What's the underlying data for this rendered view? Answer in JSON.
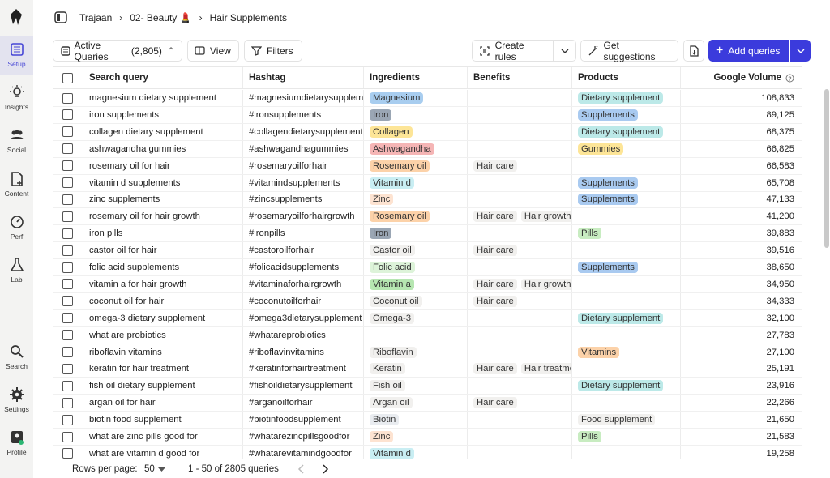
{
  "sidebar": {
    "items": [
      "Setup",
      "Insights",
      "Social",
      "Content",
      "Perf",
      "Lab",
      "Search",
      "Settings",
      "Profile"
    ]
  },
  "breadcrumb": [
    "Trajaan",
    "02- Beauty 💄",
    "Hair Supplements"
  ],
  "toolbar": {
    "active_queries": "Active Queries",
    "count": "(2,805)",
    "view": "View",
    "filters": "Filters",
    "create_rules": "Create rules",
    "get_suggestions": "Get suggestions",
    "add_queries": "Add queries"
  },
  "table": {
    "columns": [
      "Search query",
      "Hashtag",
      "Ingredients",
      "Benefits",
      "Products",
      "Google Volume"
    ],
    "rows": [
      {
        "query": "magnesium dietary supplement",
        "hashtag": "#magnesiumdietarysupplement",
        "ingredients": [
          {
            "text": "Magnesium",
            "color": "#a8cdef"
          }
        ],
        "benefits": [],
        "products": [
          {
            "text": "Dietary supplement",
            "color": "#bce9e8"
          }
        ],
        "volume": "108,833"
      },
      {
        "query": "iron supplements",
        "hashtag": "#ironsupplements",
        "ingredients": [
          {
            "text": "Iron",
            "color": "#9aa6b4"
          }
        ],
        "benefits": [],
        "products": [
          {
            "text": "Supplements",
            "color": "#a9caf0"
          }
        ],
        "volume": "89,125"
      },
      {
        "query": "collagen dietary supplement",
        "hashtag": "#collagendietarysupplement",
        "ingredients": [
          {
            "text": "Collagen",
            "color": "#fde597"
          }
        ],
        "benefits": [],
        "products": [
          {
            "text": "Dietary supplement",
            "color": "#bce9e8"
          }
        ],
        "volume": "68,375"
      },
      {
        "query": "ashwagandha gummies",
        "hashtag": "#ashwagandhagummies",
        "ingredients": [
          {
            "text": "Ashwagandha",
            "color": "#f5b5b5"
          }
        ],
        "benefits": [],
        "products": [
          {
            "text": "Gummies",
            "color": "#fde597"
          }
        ],
        "volume": "66,825"
      },
      {
        "query": "rosemary oil for hair",
        "hashtag": "#rosemaryoilforhair",
        "ingredients": [
          {
            "text": "Rosemary oil",
            "color": "#fcd2a9"
          }
        ],
        "benefits": [
          {
            "text": "Hair care",
            "color": "#f1f0ee"
          }
        ],
        "products": [],
        "volume": "66,583"
      },
      {
        "query": "vitamin d supplements",
        "hashtag": "#vitamindsupplements",
        "ingredients": [
          {
            "text": "Vitamin d",
            "color": "#c9eef3"
          }
        ],
        "benefits": [],
        "products": [
          {
            "text": "Supplements",
            "color": "#a9caf0"
          }
        ],
        "volume": "65,708"
      },
      {
        "query": "zinc supplements",
        "hashtag": "#zincsupplements",
        "ingredients": [
          {
            "text": "Zinc",
            "color": "#fde3d1"
          }
        ],
        "benefits": [],
        "products": [
          {
            "text": "Supplements",
            "color": "#a9caf0"
          }
        ],
        "volume": "47,133"
      },
      {
        "query": "rosemary oil for hair growth",
        "hashtag": "#rosemaryoilforhairgrowth",
        "ingredients": [
          {
            "text": "Rosemary oil",
            "color": "#fcd2a9"
          }
        ],
        "benefits": [
          {
            "text": "Hair care",
            "color": "#f1f0ee"
          },
          {
            "text": "Hair growth",
            "color": "#f1f0ee"
          }
        ],
        "products": [],
        "volume": "41,200"
      },
      {
        "query": "iron pills",
        "hashtag": "#ironpills",
        "ingredients": [
          {
            "text": "Iron",
            "color": "#9aa6b4"
          }
        ],
        "benefits": [],
        "products": [
          {
            "text": "Pills",
            "color": "#c8ecc1"
          }
        ],
        "volume": "39,883"
      },
      {
        "query": "castor oil for hair",
        "hashtag": "#castoroilforhair",
        "ingredients": [
          {
            "text": "Castor oil",
            "color": "#f1f0ee"
          }
        ],
        "benefits": [
          {
            "text": "Hair care",
            "color": "#f1f0ee"
          }
        ],
        "products": [],
        "volume": "39,516"
      },
      {
        "query": "folic acid supplements",
        "hashtag": "#folicacidsupplements",
        "ingredients": [
          {
            "text": "Folic acid",
            "color": "#ddf3d9"
          }
        ],
        "benefits": [],
        "products": [
          {
            "text": "Supplements",
            "color": "#a9caf0"
          }
        ],
        "volume": "38,650"
      },
      {
        "query": "vitamin a for hair growth",
        "hashtag": "#vitaminaforhairgrowth",
        "ingredients": [
          {
            "text": "Vitamin a",
            "color": "#b6e6b1"
          }
        ],
        "benefits": [
          {
            "text": "Hair care",
            "color": "#f1f0ee"
          },
          {
            "text": "Hair growth",
            "color": "#f1f0ee"
          }
        ],
        "products": [],
        "volume": "34,950"
      },
      {
        "query": "coconut oil for hair",
        "hashtag": "#coconutoilforhair",
        "ingredients": [
          {
            "text": "Coconut oil",
            "color": "#f1f0ee"
          }
        ],
        "benefits": [
          {
            "text": "Hair care",
            "color": "#f1f0ee"
          }
        ],
        "products": [],
        "volume": "34,333"
      },
      {
        "query": "omega-3 dietary supplement",
        "hashtag": "#omega3dietarysupplement",
        "ingredients": [
          {
            "text": "Omega-3",
            "color": "#f1f0ee"
          }
        ],
        "benefits": [],
        "products": [
          {
            "text": "Dietary supplement",
            "color": "#bce9e8"
          }
        ],
        "volume": "32,100"
      },
      {
        "query": "what are probiotics",
        "hashtag": "#whatareprobiotics",
        "ingredients": [],
        "benefits": [],
        "products": [],
        "volume": "27,783"
      },
      {
        "query": "riboflavin vitamins",
        "hashtag": "#riboflavinvitamins",
        "ingredients": [
          {
            "text": "Riboflavin",
            "color": "#f1f0ee"
          }
        ],
        "benefits": [],
        "products": [
          {
            "text": "Vitamins",
            "color": "#fcd2a9"
          }
        ],
        "volume": "27,100"
      },
      {
        "query": "keratin for hair treatment",
        "hashtag": "#keratinforhairtreatment",
        "ingredients": [
          {
            "text": "Keratin",
            "color": "#f1f0ee"
          }
        ],
        "benefits": [
          {
            "text": "Hair care",
            "color": "#f1f0ee"
          },
          {
            "text": "Hair treatment",
            "color": "#f1f0ee"
          }
        ],
        "products": [],
        "volume": "25,191"
      },
      {
        "query": "fish oil dietary supplement",
        "hashtag": "#fishoildietarysupplement",
        "ingredients": [
          {
            "text": "Fish oil",
            "color": "#f1f0ee"
          }
        ],
        "benefits": [],
        "products": [
          {
            "text": "Dietary supplement",
            "color": "#bce9e8"
          }
        ],
        "volume": "23,916"
      },
      {
        "query": "argan oil for hair",
        "hashtag": "#arganoilforhair",
        "ingredients": [
          {
            "text": "Argan oil",
            "color": "#f1f0ee"
          }
        ],
        "benefits": [
          {
            "text": "Hair care",
            "color": "#f1f0ee"
          }
        ],
        "products": [],
        "volume": "22,266"
      },
      {
        "query": "biotin food supplement",
        "hashtag": "#biotinfoodsupplement",
        "ingredients": [
          {
            "text": "Biotin",
            "color": "#e9ecf0"
          }
        ],
        "benefits": [],
        "products": [
          {
            "text": "Food supplement",
            "color": "#f1f0ee"
          }
        ],
        "volume": "21,650"
      },
      {
        "query": "what are zinc pills good for",
        "hashtag": "#whatarezincpillsgoodfor",
        "ingredients": [
          {
            "text": "Zinc",
            "color": "#fde3d1"
          }
        ],
        "benefits": [],
        "products": [
          {
            "text": "Pills",
            "color": "#c8ecc1"
          }
        ],
        "volume": "21,583"
      },
      {
        "query": "what are vitamin d good for",
        "hashtag": "#whatarevitamindgoodfor",
        "ingredients": [
          {
            "text": "Vitamin d",
            "color": "#c9eef3"
          }
        ],
        "benefits": [],
        "products": [],
        "volume": "19,258"
      }
    ]
  },
  "footer": {
    "rows_per_page": "Rows per page:",
    "page_size": "50",
    "range": "1 - 50 of 2805 queries"
  }
}
